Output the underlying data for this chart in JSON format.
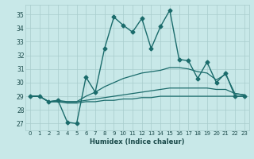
{
  "xlabel": "Humidex (Indice chaleur)",
  "xlim": [
    -0.5,
    23.5
  ],
  "ylim": [
    26.5,
    35.7
  ],
  "yticks": [
    27,
    28,
    29,
    30,
    31,
    32,
    33,
    34,
    35
  ],
  "xticks": [
    0,
    1,
    2,
    3,
    4,
    5,
    6,
    7,
    8,
    9,
    10,
    11,
    12,
    13,
    14,
    15,
    16,
    17,
    18,
    19,
    20,
    21,
    22,
    23
  ],
  "bg_color": "#c8e8e8",
  "grid_color": "#a8cccc",
  "line_color": "#1a6b6b",
  "lines": [
    {
      "x": [
        0,
        1,
        2,
        3,
        4,
        5,
        6,
        7,
        8,
        9,
        10,
        11,
        12,
        13,
        14,
        15,
        16,
        17,
        18,
        19,
        20,
        21,
        22,
        23
      ],
      "y": [
        29.0,
        29.0,
        28.6,
        28.7,
        27.1,
        27.0,
        30.4,
        29.3,
        32.5,
        34.8,
        34.2,
        33.7,
        34.7,
        32.5,
        34.1,
        35.3,
        31.7,
        31.6,
        30.3,
        31.5,
        30.0,
        30.7,
        29.0,
        29.0
      ],
      "marker": "D",
      "markersize": 2.5,
      "style": "-",
      "linewidth": 1.0
    },
    {
      "x": [
        0,
        1,
        2,
        3,
        4,
        5,
        6,
        7,
        8,
        9,
        10,
        11,
        12,
        13,
        14,
        15,
        16,
        17,
        18,
        19,
        20,
        21,
        22,
        23
      ],
      "y": [
        29.0,
        29.0,
        28.6,
        28.7,
        28.6,
        28.6,
        29.0,
        29.3,
        29.7,
        30.0,
        30.3,
        30.5,
        30.7,
        30.8,
        30.9,
        31.1,
        31.1,
        31.0,
        30.8,
        30.7,
        30.2,
        30.6,
        29.2,
        29.1
      ],
      "marker": "None",
      "markersize": 0,
      "style": "-",
      "linewidth": 0.9
    },
    {
      "x": [
        0,
        1,
        2,
        3,
        4,
        5,
        6,
        7,
        8,
        9,
        10,
        11,
        12,
        13,
        14,
        15,
        16,
        17,
        18,
        19,
        20,
        21,
        22,
        23
      ],
      "y": [
        29.0,
        29.0,
        28.6,
        28.6,
        28.6,
        28.6,
        28.7,
        28.8,
        28.9,
        29.0,
        29.1,
        29.2,
        29.3,
        29.4,
        29.5,
        29.6,
        29.6,
        29.6,
        29.6,
        29.6,
        29.5,
        29.5,
        29.2,
        29.1
      ],
      "marker": "None",
      "markersize": 0,
      "style": "-",
      "linewidth": 0.9
    },
    {
      "x": [
        0,
        1,
        2,
        3,
        4,
        5,
        6,
        7,
        8,
        9,
        10,
        11,
        12,
        13,
        14,
        15,
        16,
        17,
        18,
        19,
        20,
        21,
        22,
        23
      ],
      "y": [
        29.0,
        29.0,
        28.6,
        28.6,
        28.5,
        28.5,
        28.6,
        28.6,
        28.7,
        28.7,
        28.8,
        28.8,
        28.9,
        28.9,
        29.0,
        29.0,
        29.0,
        29.0,
        29.0,
        29.0,
        29.0,
        29.0,
        29.0,
        29.0
      ],
      "marker": "None",
      "markersize": 0,
      "style": "-",
      "linewidth": 0.9
    }
  ]
}
